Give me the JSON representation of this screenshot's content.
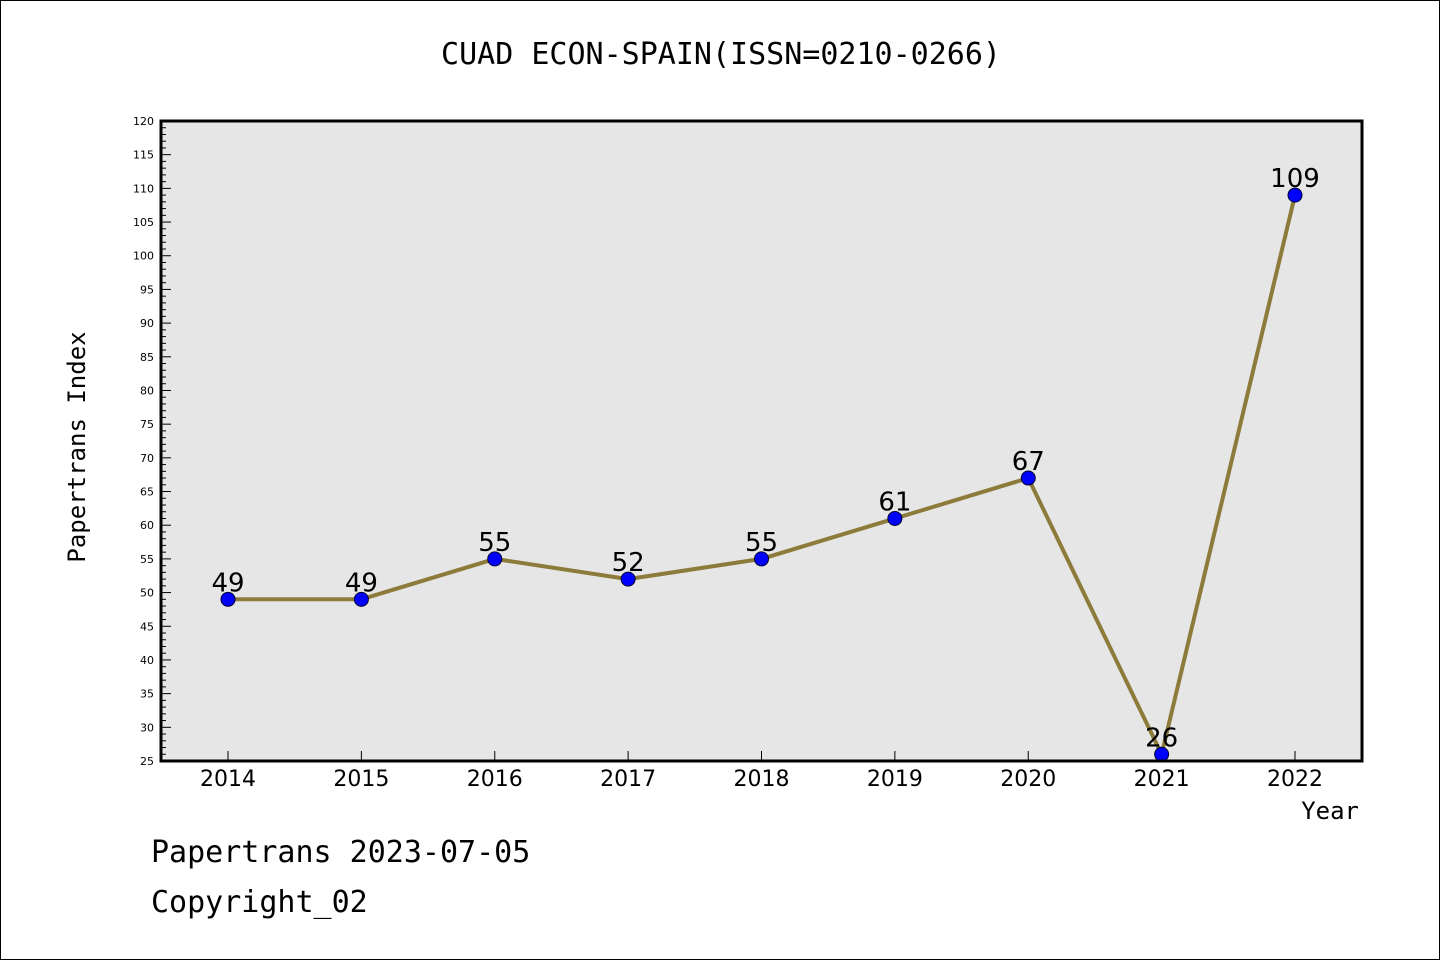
{
  "chart_data": {
    "type": "line",
    "title": "CUAD ECON-SPAIN(ISSN=0210-0266)",
    "xlabel": "Year",
    "ylabel": "Papertrans Index",
    "categories": [
      "2014",
      "2015",
      "2016",
      "2017",
      "2018",
      "2019",
      "2020",
      "2021",
      "2022"
    ],
    "series": [
      {
        "values": [
          49,
          49,
          55,
          52,
          55,
          61,
          67,
          26,
          109
        ]
      }
    ],
    "data_labels": [
      "49",
      "49",
      "55",
      "52",
      "55",
      "61",
      "67",
      "26",
      "109"
    ],
    "ylim": [
      25,
      120
    ],
    "y_ticks": [
      "25",
      "30",
      "35",
      "40",
      "45",
      "50",
      "55",
      "60",
      "65",
      "70",
      "75",
      "80",
      "85",
      "90",
      "95",
      "100",
      "105",
      "110",
      "115",
      "120"
    ],
    "grid": false,
    "legend": "none",
    "colors": {
      "plot_background": "#e6e6e6",
      "line": "#8c7b3a",
      "marker": "#0000ff",
      "axis": "#000000"
    }
  },
  "footer": {
    "line1": "Papertrans 2023-07-05",
    "line2": "Copyright_02"
  }
}
